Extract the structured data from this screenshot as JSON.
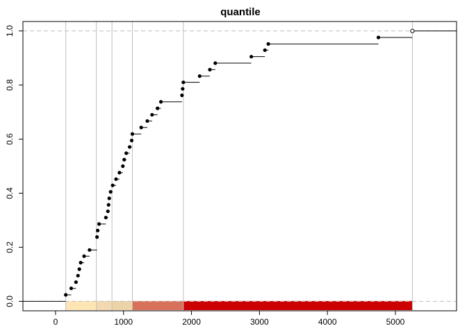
{
  "chart_data": {
    "type": "step",
    "title": "quantile",
    "xlabel": "",
    "ylabel": "",
    "xlim": [
      -480,
      5900
    ],
    "ylim": [
      -0.035,
      1.035
    ],
    "x_ticks": [
      0,
      1000,
      2000,
      3000,
      4000,
      5000
    ],
    "x_tick_labels": [
      "0",
      "1000",
      "2000",
      "3000",
      "4000",
      "5000"
    ],
    "y_ticks": [
      0,
      0.2,
      0.4,
      0.6,
      0.8,
      1.0
    ],
    "y_tick_labels": [
      "0.0",
      "0.2",
      "0.4",
      "0.6",
      "0.8",
      "1.0"
    ],
    "grid": false,
    "reference_lines_y": [
      0,
      1
    ],
    "quantile_breaks": [
      150,
      600,
      830,
      1130,
      1880,
      5250
    ],
    "color_bands": [
      {
        "from": 150,
        "to": 600,
        "color": "#fde6b4"
      },
      {
        "from": 600,
        "to": 830,
        "color": "#f2d9b0"
      },
      {
        "from": 830,
        "to": 1130,
        "color": "#edd4a8"
      },
      {
        "from": 1130,
        "to": 1880,
        "color": "#d9705a"
      },
      {
        "from": 1880,
        "to": 5250,
        "color": "#cc0000"
      }
    ],
    "x": [
      150,
      230,
      300,
      330,
      350,
      370,
      420,
      500,
      610,
      620,
      640,
      740,
      770,
      780,
      790,
      810,
      840,
      890,
      940,
      990,
      1010,
      1040,
      1090,
      1120,
      1130,
      1260,
      1350,
      1420,
      1500,
      1550,
      1860,
      1870,
      1880,
      2120,
      2270,
      2350,
      2880,
      3080,
      3130,
      4750,
      5250
    ],
    "values": [
      0.024,
      0.048,
      0.071,
      0.095,
      0.119,
      0.143,
      0.167,
      0.19,
      0.238,
      0.262,
      0.286,
      0.31,
      0.333,
      0.357,
      0.381,
      0.405,
      0.429,
      0.452,
      0.476,
      0.5,
      0.524,
      0.548,
      0.571,
      0.595,
      0.619,
      0.643,
      0.667,
      0.69,
      0.714,
      0.738,
      0.762,
      0.786,
      0.81,
      0.833,
      0.857,
      0.881,
      0.905,
      0.929,
      0.952,
      0.976,
      1.0
    ],
    "colors": {
      "axis": "#000000",
      "points": "#000000",
      "vertical_lines": "#bebebe",
      "reference_lines": "#bebebe"
    }
  }
}
